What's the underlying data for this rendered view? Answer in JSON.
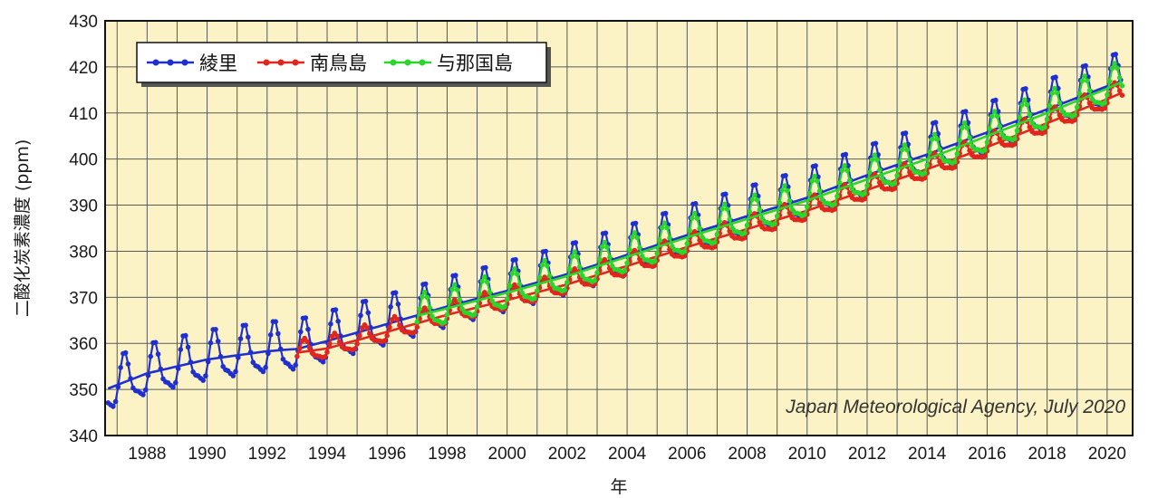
{
  "chart_data": {
    "type": "line",
    "xlabel": "年",
    "ylabel": "二酸化炭素濃度 (ppm)",
    "annotation": "Japan Meteorological Agency, July 2020",
    "xlim": [
      1986.6,
      2020.85
    ],
    "ylim": [
      340,
      430
    ],
    "x_ticks": [
      "1988",
      "1990",
      "1992",
      "1994",
      "1996",
      "1998",
      "2000",
      "2002",
      "2004",
      "2006",
      "2008",
      "2010",
      "2012",
      "2014",
      "2016",
      "2018",
      "2020"
    ],
    "y_ticks": [
      "340",
      "350",
      "360",
      "370",
      "380",
      "390",
      "400",
      "410",
      "420",
      "430"
    ],
    "grid": true,
    "legend_position": "top-left",
    "background_color": "#fbf3c6",
    "series": [
      {
        "name": "綾里",
        "color": "#1f2fd0",
        "start_year": 1986.7,
        "end_year": 2020.5,
        "trend_points": [
          [
            1986.7,
            350.2
          ],
          [
            1988,
            353.5
          ],
          [
            1990,
            356.5
          ],
          [
            1992,
            358.3
          ],
          [
            1993,
            358.8
          ],
          [
            1994,
            360.5
          ],
          [
            1996,
            364.2
          ],
          [
            1998,
            368.0
          ],
          [
            2000,
            371.4
          ],
          [
            2002,
            375.0
          ],
          [
            2004,
            379.2
          ],
          [
            2006,
            383.5
          ],
          [
            2008,
            387.6
          ],
          [
            2010,
            391.6
          ],
          [
            2012,
            396.5
          ],
          [
            2014,
            401.0
          ],
          [
            2016,
            405.8
          ],
          [
            2018,
            410.8
          ],
          [
            2020,
            415.8
          ],
          [
            2020.5,
            417.0
          ]
        ],
        "amplitude": 6.5
      },
      {
        "name": "南鳥島",
        "color": "#e0261d",
        "start_year": 1993.0,
        "end_year": 2020.5,
        "trend_points": [
          [
            1993,
            358.0
          ],
          [
            1994,
            358.9
          ],
          [
            1996,
            362.5
          ],
          [
            1998,
            366.2
          ],
          [
            2000,
            369.4
          ],
          [
            2002,
            372.8
          ],
          [
            2004,
            376.8
          ],
          [
            2006,
            380.9
          ],
          [
            2008,
            384.8
          ],
          [
            2010,
            388.8
          ],
          [
            2012,
            393.3
          ],
          [
            2014,
            397.8
          ],
          [
            2016,
            402.6
          ],
          [
            2018,
            407.8
          ],
          [
            2020,
            413.0
          ],
          [
            2020.5,
            414.4
          ]
        ],
        "amplitude": 2.8
      },
      {
        "name": "与那国島",
        "color": "#2bd62b",
        "start_year": 1997.0,
        "end_year": 2020.5,
        "trend_points": [
          [
            1997,
            366.0
          ],
          [
            1998,
            367.6
          ],
          [
            2000,
            371.0
          ],
          [
            2002,
            374.6
          ],
          [
            2004,
            378.8
          ],
          [
            2006,
            383.0
          ],
          [
            2008,
            387.0
          ],
          [
            2010,
            391.0
          ],
          [
            2012,
            395.6
          ],
          [
            2014,
            400.0
          ],
          [
            2016,
            405.0
          ],
          [
            2018,
            410.0
          ],
          [
            2020,
            415.3
          ],
          [
            2020.5,
            416.8
          ]
        ],
        "amplitude": 4.6
      }
    ]
  }
}
